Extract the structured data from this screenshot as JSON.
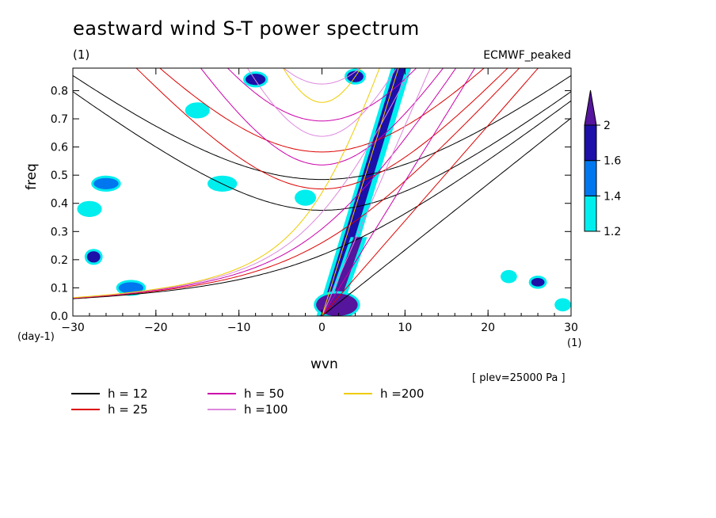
{
  "title": "eastward wind S-T power spectrum",
  "unit_label": "(1)",
  "run_name": "ECMWF_peaked",
  "x_unit_left": "(day-1)",
  "x_unit_right": "(1)",
  "plev_note": "[ plev=25000 Pa ]",
  "colors": {
    "c12": "#000000",
    "c25": "#dd0000",
    "c50": "#cc00aa",
    "c100": "#dd88dd",
    "c200": "#eecc00"
  },
  "chart_data": {
    "type": "heatmap",
    "title": "eastward wind S-T power spectrum",
    "xlabel": "wvn",
    "ylabel": "freq",
    "xlim": [
      -30,
      30
    ],
    "ylim": [
      0,
      0.88
    ],
    "x_ticks": [
      -30,
      -20,
      -10,
      0,
      10,
      20,
      30
    ],
    "x_tick_labels": [
      "−30",
      "−20",
      "−10",
      "0",
      "10",
      "20",
      "30"
    ],
    "y_ticks": [
      0.0,
      0.1,
      0.2,
      0.3,
      0.4,
      0.5,
      0.6,
      0.7,
      0.8
    ],
    "y_tick_labels": [
      "0.0",
      "0.1",
      "0.2",
      "0.3",
      "0.4",
      "0.5",
      "0.6",
      "0.7",
      "0.8"
    ],
    "colorbar": {
      "levels": [
        1.2,
        1.4,
        1.6,
        2
      ],
      "labels": [
        "1.2",
        "1.4",
        "1.6",
        "2"
      ],
      "colors": [
        "#00eeee",
        "#0077ee",
        "#1c10a8",
        "#55159c"
      ]
    },
    "dispersion_curves": [
      {
        "name": "h = 12",
        "h": 12,
        "color": "#000000"
      },
      {
        "name": "h = 25",
        "h": 25,
        "color": "#dd0000"
      },
      {
        "name": "h = 50",
        "h": 50,
        "color": "#cc00aa"
      },
      {
        "name": "h =100",
        "h": 100,
        "color": "#dd88dd"
      },
      {
        "name": "h =200",
        "h": 200,
        "color": "#eecc00"
      }
    ],
    "spectral_features": [
      {
        "name": "kelvin-band",
        "kind": "band",
        "x_from": 0,
        "y_from": 0,
        "x_to": 9,
        "y_to": 0.88,
        "width": 2.2,
        "level": 1.6
      },
      {
        "name": "kelvin-core",
        "kind": "band",
        "x_from": 0.8,
        "y_from": 0.01,
        "x_to": 4,
        "y_to": 0.28,
        "width": 1.8,
        "level": 2
      },
      {
        "name": "low-wvn-patch",
        "kind": "patch",
        "x": 1.8,
        "y": 0.04,
        "dx": 2.5,
        "dy": 0.04,
        "level": 2
      },
      {
        "name": "blob",
        "kind": "patch",
        "x": -26,
        "y": 0.47,
        "dx": 1.5,
        "dy": 0.02,
        "level": 1.4
      },
      {
        "name": "blob",
        "kind": "patch",
        "x": -28,
        "y": 0.38,
        "dx": 1.2,
        "dy": 0.02,
        "level": 1.2
      },
      {
        "name": "blob",
        "kind": "patch",
        "x": -27.5,
        "y": 0.21,
        "dx": 0.8,
        "dy": 0.02,
        "level": 1.6
      },
      {
        "name": "blob",
        "kind": "patch",
        "x": -23,
        "y": 0.1,
        "dx": 1.5,
        "dy": 0.02,
        "level": 1.4
      },
      {
        "name": "blob",
        "kind": "patch",
        "x": -15,
        "y": 0.73,
        "dx": 1.2,
        "dy": 0.02,
        "level": 1.2
      },
      {
        "name": "blob",
        "kind": "patch",
        "x": -12,
        "y": 0.47,
        "dx": 1.5,
        "dy": 0.02,
        "level": 1.2
      },
      {
        "name": "blob",
        "kind": "patch",
        "x": -8,
        "y": 0.84,
        "dx": 1.2,
        "dy": 0.02,
        "level": 1.6
      },
      {
        "name": "blob",
        "kind": "patch",
        "x": -2,
        "y": 0.42,
        "dx": 1,
        "dy": 0.02,
        "level": 1.2
      },
      {
        "name": "blob",
        "kind": "patch",
        "x": 4,
        "y": 0.85,
        "dx": 1,
        "dy": 0.02,
        "level": 1.6
      },
      {
        "name": "blob",
        "kind": "patch",
        "x": 26,
        "y": 0.12,
        "dx": 0.8,
        "dy": 0.015,
        "level": 1.6
      },
      {
        "name": "blob",
        "kind": "patch",
        "x": 29,
        "y": 0.04,
        "dx": 0.7,
        "dy": 0.015,
        "level": 1.2
      },
      {
        "name": "blob",
        "kind": "patch",
        "x": 22.5,
        "y": 0.14,
        "dx": 0.7,
        "dy": 0.015,
        "level": 1.2
      }
    ]
  },
  "legend": [
    {
      "label": "h = 12",
      "color": "#000000"
    },
    {
      "label": "h = 25",
      "color": "#dd0000"
    },
    {
      "label": "h = 50",
      "color": "#cc00aa"
    },
    {
      "label": "h =100",
      "color": "#dd88dd"
    },
    {
      "label": "h =200",
      "color": "#eecc00"
    }
  ]
}
